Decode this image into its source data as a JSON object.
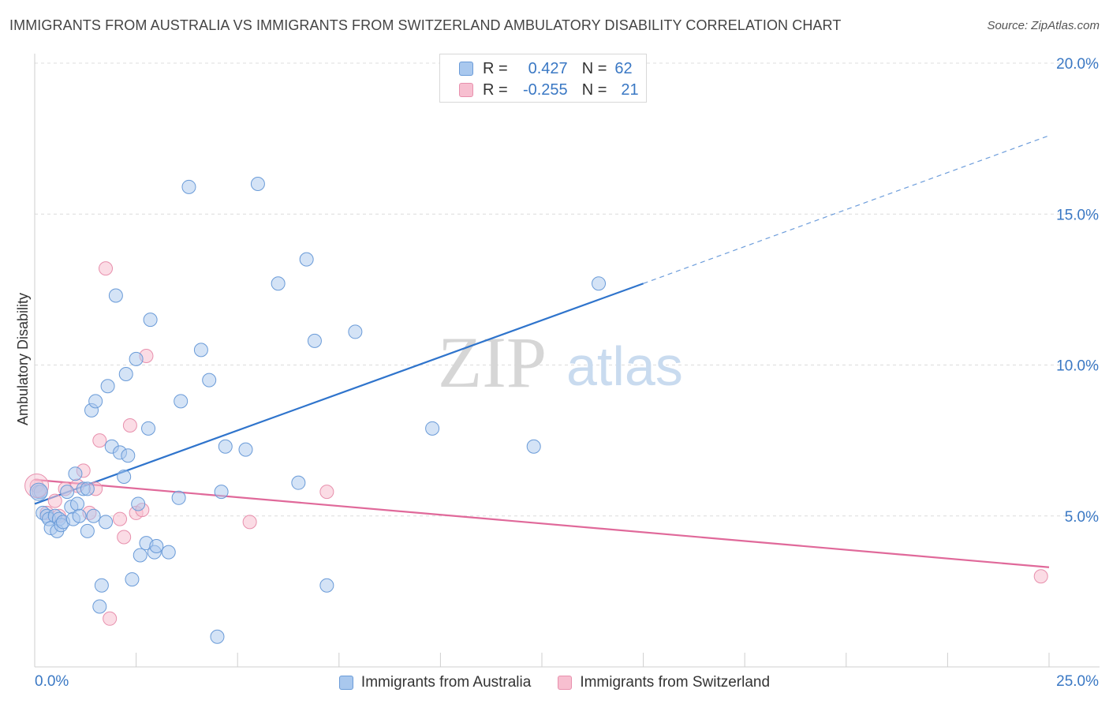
{
  "header": {
    "title": "IMMIGRANTS FROM AUSTRALIA VS IMMIGRANTS FROM SWITZERLAND AMBULATORY DISABILITY CORRELATION CHART",
    "source": "Source: ZipAtlas.com"
  },
  "watermark": {
    "zip": "ZIP",
    "atlas": "atlas"
  },
  "stats": {
    "australia": {
      "r_label": "R =",
      "r_value": "0.427",
      "n_label": "N =",
      "n_value": "62"
    },
    "switzerland": {
      "r_label": "R =",
      "r_value": "-0.255",
      "n_label": "N =",
      "n_value": "21"
    }
  },
  "legend": {
    "australia": "Immigrants from Australia",
    "switzerland": "Immigrants from Switzerland"
  },
  "colors": {
    "australia_fill": "#a9c8ee",
    "australia_stroke": "#6a9bd8",
    "australia_line": "#2f74cc",
    "switzerland_fill": "#f7bfd0",
    "switzerland_stroke": "#e890ad",
    "switzerland_line": "#e0699a",
    "tick_label": "#3a78c4",
    "grid": "#dcdcdc"
  },
  "chart_data": {
    "type": "scatter",
    "title": "IMMIGRANTS FROM AUSTRALIA VS IMMIGRANTS FROM SWITZERLAND AMBULATORY DISABILITY CORRELATION CHART",
    "xlabel": "",
    "ylabel": "Ambulatory Disability",
    "xlim": [
      0,
      25
    ],
    "ylim": [
      0,
      20
    ],
    "x_tick_labels": [
      "0.0%",
      "25.0%"
    ],
    "y_ticks": [
      {
        "value": 5,
        "label": "5.0%"
      },
      {
        "value": 10,
        "label": "10.0%"
      },
      {
        "value": 15,
        "label": "15.0%"
      },
      {
        "value": 20,
        "label": "20.0%"
      }
    ],
    "series": [
      {
        "name": "Immigrants from Australia",
        "points": [
          [
            0.1,
            5.8
          ],
          [
            0.2,
            5.1
          ],
          [
            0.3,
            5.0
          ],
          [
            0.35,
            4.9
          ],
          [
            0.4,
            4.6
          ],
          [
            0.5,
            5.0
          ],
          [
            0.55,
            4.5
          ],
          [
            0.6,
            4.9
          ],
          [
            0.65,
            4.7
          ],
          [
            0.7,
            4.8
          ],
          [
            0.8,
            5.8
          ],
          [
            0.9,
            5.3
          ],
          [
            0.95,
            4.9
          ],
          [
            1.0,
            6.4
          ],
          [
            1.05,
            5.4
          ],
          [
            1.1,
            5.0
          ],
          [
            1.2,
            5.9
          ],
          [
            1.3,
            5.9
          ],
          [
            1.3,
            4.5
          ],
          [
            1.4,
            8.5
          ],
          [
            1.5,
            8.8
          ],
          [
            1.6,
            2.0
          ],
          [
            1.65,
            2.7
          ],
          [
            1.75,
            4.8
          ],
          [
            1.8,
            9.3
          ],
          [
            1.9,
            7.3
          ],
          [
            2.0,
            12.3
          ],
          [
            2.1,
            7.1
          ],
          [
            2.2,
            6.3
          ],
          [
            2.25,
            9.7
          ],
          [
            2.3,
            7.0
          ],
          [
            2.4,
            2.9
          ],
          [
            2.5,
            10.2
          ],
          [
            2.55,
            5.4
          ],
          [
            2.6,
            3.7
          ],
          [
            2.75,
            4.1
          ],
          [
            2.8,
            7.9
          ],
          [
            2.85,
            11.5
          ],
          [
            2.95,
            3.8
          ],
          [
            3.0,
            4.0
          ],
          [
            3.3,
            3.8
          ],
          [
            3.55,
            5.6
          ],
          [
            3.6,
            8.8
          ],
          [
            3.8,
            15.9
          ],
          [
            4.1,
            10.5
          ],
          [
            4.3,
            9.5
          ],
          [
            4.5,
            1.0
          ],
          [
            4.6,
            5.8
          ],
          [
            4.7,
            7.3
          ],
          [
            5.2,
            7.2
          ],
          [
            5.5,
            16.0
          ],
          [
            6.0,
            12.7
          ],
          [
            6.5,
            6.1
          ],
          [
            6.7,
            13.5
          ],
          [
            6.9,
            10.8
          ],
          [
            7.2,
            2.7
          ],
          [
            7.9,
            11.1
          ],
          [
            9.8,
            7.9
          ],
          [
            12.3,
            7.3
          ],
          [
            13.9,
            12.7
          ],
          [
            0.15,
            5.8
          ],
          [
            1.45,
            5.0
          ]
        ],
        "trend": {
          "x0": 0,
          "y0": 5.4,
          "x1": 15.0,
          "y1": 12.7,
          "dashed_to_x": 25,
          "dashed_to_y": 17.6
        }
      },
      {
        "name": "Immigrants from Switzerland",
        "points": [
          [
            0.05,
            6.0
          ],
          [
            0.3,
            5.1
          ],
          [
            0.5,
            5.5
          ],
          [
            0.6,
            5.0
          ],
          [
            0.75,
            5.9
          ],
          [
            1.05,
            6.0
          ],
          [
            1.2,
            6.5
          ],
          [
            1.35,
            5.1
          ],
          [
            1.5,
            5.9
          ],
          [
            1.6,
            7.5
          ],
          [
            1.75,
            13.2
          ],
          [
            1.85,
            1.6
          ],
          [
            2.1,
            4.9
          ],
          [
            2.2,
            4.3
          ],
          [
            2.35,
            8.0
          ],
          [
            2.5,
            5.1
          ],
          [
            2.65,
            5.2
          ],
          [
            2.75,
            10.3
          ],
          [
            5.3,
            4.8
          ],
          [
            7.2,
            5.8
          ],
          [
            24.8,
            3.0
          ]
        ],
        "trend": {
          "x0": 0,
          "y0": 6.2,
          "x1": 25,
          "y1": 3.3
        }
      }
    ]
  }
}
